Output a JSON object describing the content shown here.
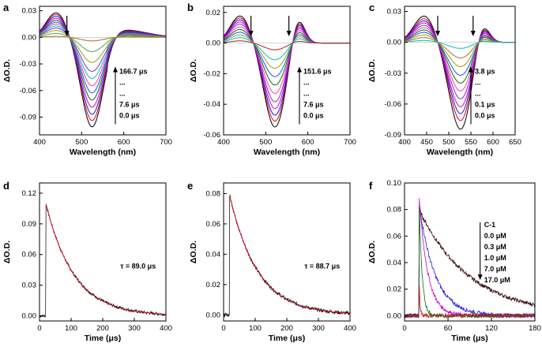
{
  "chart_data": [
    {
      "type": "line",
      "panel_label": "a",
      "xlabel": "Wavelength (nm)",
      "ylabel": "ΔO.D.",
      "xlim": [
        400,
        700
      ],
      "ylim": [
        -0.11,
        0.035
      ],
      "x_ticks": [
        400,
        500,
        600,
        700
      ],
      "y_ticks": [
        0.03,
        0.0,
        -0.03,
        -0.06,
        -0.09
      ],
      "y_tick_labels": [
        "0.03",
        "0.00",
        "-0.03",
        "-0.06",
        "-0.09"
      ],
      "shape": {
        "pos_peak_nm": 440,
        "neg_peak_nm": 525,
        "tail_peak_nm": 590,
        "pos_amp": 0.028,
        "neg_amp": 0.103,
        "tail_amp": 0.009
      },
      "series_scales": [
        1.0,
        0.93,
        0.86,
        0.78,
        0.7,
        0.62,
        0.54,
        0.46,
        0.38,
        0.28,
        0.16,
        0.04
      ],
      "series_colors": [
        "#000000",
        "#e3001b",
        "#1a1ae6",
        "#cc00cc",
        "#0b6d0b",
        "#1a4ff0",
        "#ff3fa0",
        "#00bfbf",
        "#7d2fd0",
        "#9aa000",
        "#41ad41",
        "#b26b1f"
      ],
      "arrow_nm": [
        465
      ],
      "labels": [
        "166.7 μs",
        "...",
        "...",
        "7.6 μs",
        "0.0 μs"
      ]
    },
    {
      "type": "line",
      "panel_label": "b",
      "xlabel": "Wavelength (nm)",
      "ylabel": "ΔO.D.",
      "xlim": [
        400,
        700
      ],
      "ylim": [
        -0.06,
        0.024
      ],
      "x_ticks": [
        400,
        500,
        600,
        700
      ],
      "y_ticks": [
        0.02,
        0.0,
        -0.02,
        -0.04,
        -0.06
      ],
      "y_tick_labels": [
        "0.02",
        "0.00",
        "-0.02",
        "-0.04",
        "-0.06"
      ],
      "shape": {
        "pos_peak_nm": 440,
        "neg_peak_nm": 522,
        "pos2_peak_nm": 575,
        "pos_amp": 0.018,
        "neg_amp": 0.055,
        "pos2_amp": 0.019
      },
      "series_scales": [
        1.0,
        0.93,
        0.86,
        0.78,
        0.7,
        0.6,
        0.5,
        0.4,
        0.3,
        0.2,
        0.08
      ],
      "series_colors": [
        "#000000",
        "#e3001b",
        "#1a1ae6",
        "#cc00cc",
        "#7d2fd0",
        "#ff3fa0",
        "#0b6d0b",
        "#1a4ff0",
        "#9aa000",
        "#00bfbf",
        "#b21f1f"
      ],
      "arrow_nm": [
        465,
        555
      ],
      "labels": [
        "151.6 μs",
        "...",
        "...",
        "7.6 μs",
        "0.0 μs"
      ]
    },
    {
      "type": "line",
      "panel_label": "c",
      "xlabel": "Wavelength (nm)",
      "ylabel": "ΔO.D.",
      "xlim": [
        400,
        650
      ],
      "ylim": [
        -0.09,
        0.035
      ],
      "x_ticks": [
        400,
        450,
        500,
        550,
        600,
        650
      ],
      "y_ticks": [
        0.03,
        0.0,
        -0.03,
        -0.06,
        -0.09
      ],
      "y_tick_labels": [
        "0.03",
        "0.00",
        "-0.03",
        "-0.06",
        "-0.09"
      ],
      "shape": {
        "pos_peak_nm": 445,
        "neg_peak_nm": 527,
        "pos2_peak_nm": 573,
        "pos_amp": 0.026,
        "neg_amp": 0.085,
        "pos2_amp": 0.026
      },
      "series_scales": [
        1.0,
        0.9,
        0.82,
        0.74,
        0.65,
        0.56,
        0.47,
        0.38,
        0.28,
        0.18,
        0.07
      ],
      "series_colors": [
        "#000000",
        "#e3001b",
        "#1a1ae6",
        "#cc00cc",
        "#7d2fd0",
        "#ff3fa0",
        "#0b6d0b",
        "#1a4ff0",
        "#9aa000",
        "#b26b1f",
        "#00bfbf"
      ],
      "arrow_nm": [
        475,
        555
      ],
      "labels": [
        "3.8 μs",
        "...",
        "...",
        "0.1 μs",
        "0.0 μs"
      ]
    },
    {
      "type": "line",
      "panel_label": "d",
      "xlabel": "Time (μs)",
      "ylabel": "ΔO.D.",
      "xlim": [
        0,
        400
      ],
      "ylim": [
        -0.005,
        0.13
      ],
      "x_ticks": [
        0,
        100,
        200,
        300,
        400
      ],
      "y_ticks": [
        0.0,
        0.03,
        0.06,
        0.09,
        0.12
      ],
      "y_tick_labels": [
        "0.00",
        "0.03",
        "0.06",
        "0.09",
        "0.12"
      ],
      "decay": {
        "t0": 20,
        "amp": 0.11,
        "tau": 89.0,
        "noise": 0.0015
      },
      "fit_color": "#e3001b",
      "annotation": "τ = 89.0 μs"
    },
    {
      "type": "line",
      "panel_label": "e",
      "xlabel": "Time (μs)",
      "ylabel": "ΔO.D.",
      "xlim": [
        0,
        400
      ],
      "ylim": [
        -0.004,
        0.087
      ],
      "x_ticks": [
        0,
        100,
        200,
        300,
        400
      ],
      "y_ticks": [
        0.0,
        0.02,
        0.04,
        0.06,
        0.08
      ],
      "y_tick_labels": [
        "0.00",
        "0.02",
        "0.04",
        "0.06",
        "0.08"
      ],
      "decay": {
        "t0": 18,
        "amp": 0.08,
        "tau": 88.7,
        "noise": 0.0012
      },
      "fit_color": "#e3001b",
      "annotation": "τ = 88.7 μs"
    },
    {
      "type": "line",
      "panel_label": "f",
      "xlabel": "Time (μs)",
      "ylabel": "ΔO.D.",
      "xlim": [
        0,
        180
      ],
      "ylim": [
        -0.004,
        0.1
      ],
      "x_ticks": [
        0,
        60,
        120,
        180
      ],
      "y_ticks": [
        0.0,
        0.02,
        0.04,
        0.06,
        0.08,
        0.1
      ],
      "y_tick_labels": [
        "0.00",
        "0.02",
        "0.04",
        "0.06",
        "0.08",
        "0.10"
      ],
      "series": [
        {
          "name": "0.0 μM",
          "color": "#3a0a0a",
          "amp": 0.08,
          "tau": 70,
          "t0": 20
        },
        {
          "name": "0.3 μM",
          "color": "#1a1ae6",
          "amp": 0.085,
          "tau": 22,
          "t0": 20
        },
        {
          "name": "1.0 μM",
          "color": "#cc00cc",
          "amp": 0.09,
          "tau": 12,
          "t0": 20
        },
        {
          "name": "7.0 μM",
          "color": "#0b6d0b",
          "amp": 0.09,
          "tau": 4,
          "t0": 20
        },
        {
          "name": "17.0 μM",
          "color": "#b21f1f",
          "amp": 0.03,
          "tau": 1.2,
          "t0": 20
        }
      ],
      "legend_title": "C-1",
      "labels": [
        "C-1",
        "0.0 μM",
        "0.3 μM",
        "1.0 μM",
        "7.0 μM",
        "17.0 μM"
      ]
    }
  ]
}
